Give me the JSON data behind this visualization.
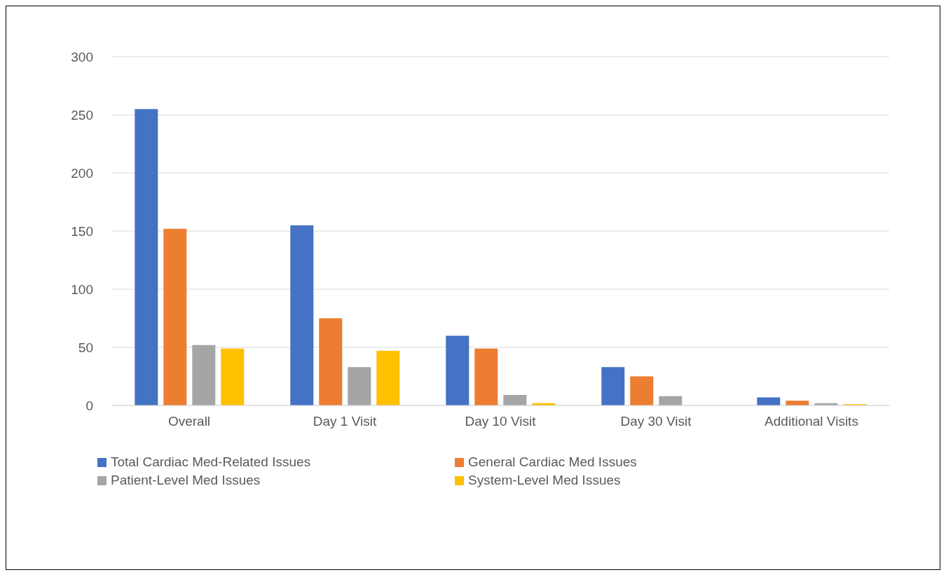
{
  "chart_data": {
    "type": "bar",
    "categories": [
      "Overall",
      "Day 1  Visit",
      "Day 10 Visit",
      "Day 30 Visit",
      "Additional Visits"
    ],
    "series": [
      {
        "name": "Total Cardiac Med-Related Issues",
        "color": "#4472c4",
        "values": [
          255,
          155,
          60,
          33,
          7
        ]
      },
      {
        "name": "General Cardiac Med Issues",
        "color": "#ed7d31",
        "values": [
          152,
          75,
          49,
          25,
          4
        ]
      },
      {
        "name": "Patient-Level Med Issues",
        "color": "#a5a5a5",
        "values": [
          52,
          33,
          9,
          8,
          2
        ]
      },
      {
        "name": "System-Level Med Issues",
        "color": "#ffc000",
        "values": [
          49,
          47,
          2,
          0,
          1
        ]
      }
    ],
    "ylim": [
      0,
      300
    ],
    "yticks": [
      0,
      50,
      100,
      150,
      200,
      250,
      300
    ],
    "grid": "y",
    "legend": "bottom"
  }
}
